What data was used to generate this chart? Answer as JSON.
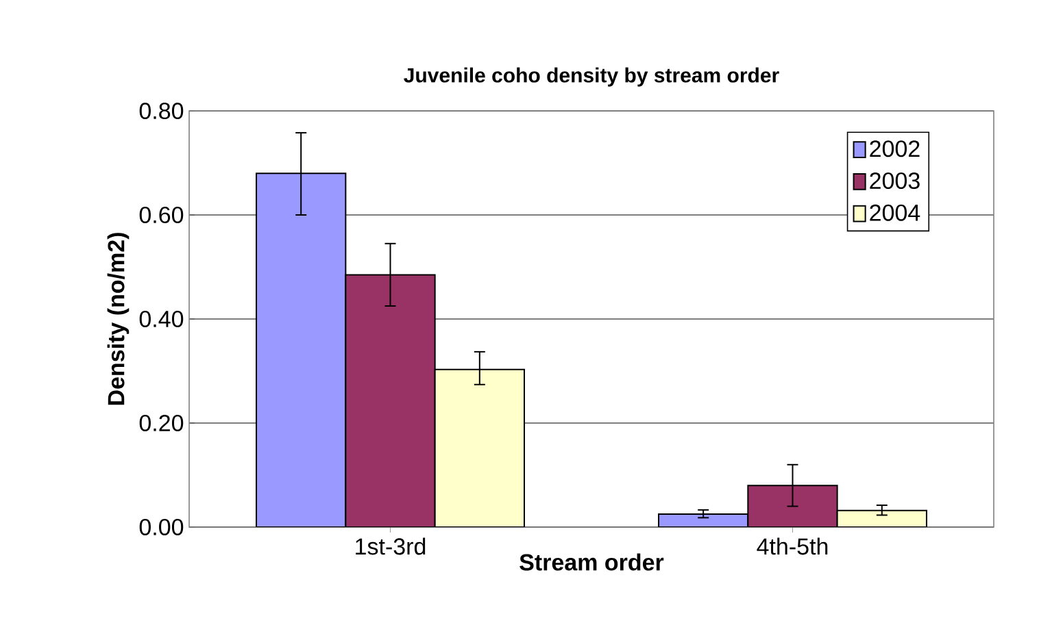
{
  "chart_data": {
    "type": "bar",
    "title": "Juvenile coho density by stream order",
    "xlabel": "Stream order",
    "ylabel": "Density (no/m2)",
    "categories": [
      "1st-3rd",
      "4th-5th"
    ],
    "series": [
      {
        "name": "2002",
        "color": "#9999ff",
        "values": [
          0.68,
          0.025
        ],
        "errors": [
          [
            0.6,
            0.758
          ],
          [
            0.018,
            0.033
          ]
        ]
      },
      {
        "name": "2003",
        "color": "#993366",
        "values": [
          0.485,
          0.08
        ],
        "errors": [
          [
            0.425,
            0.545
          ],
          [
            0.04,
            0.12
          ]
        ]
      },
      {
        "name": "2004",
        "color": "#ffffcc",
        "values": [
          0.303,
          0.032
        ],
        "errors": [
          [
            0.274,
            0.337
          ],
          [
            0.023,
            0.042
          ]
        ]
      }
    ],
    "ylim": [
      0,
      0.8
    ],
    "yticks": [
      {
        "value": 0,
        "label": "0.00"
      },
      {
        "value": 0.2,
        "label": "0.20"
      },
      {
        "value": 0.4,
        "label": "0.40"
      },
      {
        "value": 0.6,
        "label": "0.60"
      },
      {
        "value": 0.8,
        "label": "0.80"
      }
    ],
    "grid": "y",
    "legend": "top right"
  }
}
